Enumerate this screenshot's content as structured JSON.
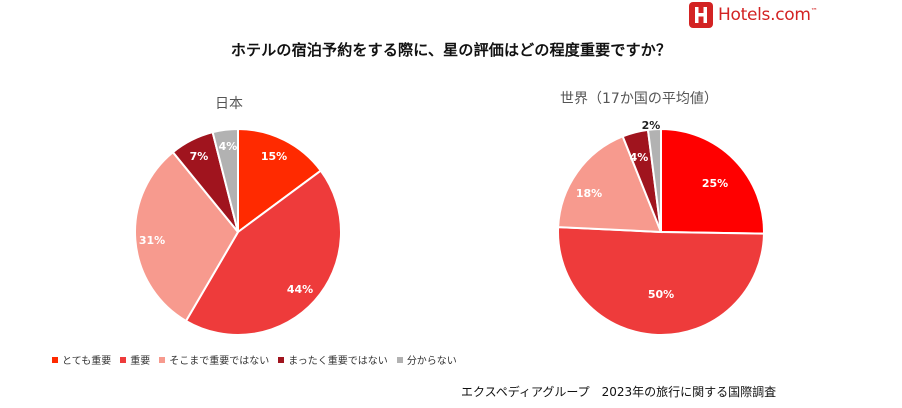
{
  "brand": {
    "name": "Hotels.com",
    "tm": "™",
    "color": "#d32323"
  },
  "title": "ホテルの宿泊予約をする際に、星の評価はどの程度重要ですか？",
  "source": "エクスペディアグループ　2023年の旅行に関する国際調査",
  "legend": [
    {
      "label": "とても重要",
      "color": "#ff2a00"
    },
    {
      "label": "重要",
      "color": "#ee3b3b"
    },
    {
      "label": "そこまで重要ではない",
      "color": "#f79a8e"
    },
    {
      "label": "まったく重要ではない",
      "color": "#a0141e"
    },
    {
      "label": "分からない",
      "color": "#b2b2b2"
    }
  ],
  "chart_data": [
    {
      "type": "pie",
      "title": "日本",
      "categories": [
        "とても重要",
        "重要",
        "そこまで重要ではない",
        "まったく重要ではない",
        "分からない"
      ],
      "values": [
        15,
        44,
        31,
        7,
        4
      ],
      "labels": [
        "15%",
        "44%",
        "31%",
        "7%",
        "4%"
      ],
      "colors": [
        "#ff2a00",
        "#ee3b3b",
        "#f79a8e",
        "#a0141e",
        "#b2b2b2"
      ]
    },
    {
      "type": "pie",
      "title": "世界（17か国の平均値）",
      "categories": [
        "とても重要",
        "重要",
        "そこまで重要ではない",
        "まったく重要ではない",
        "分からない"
      ],
      "values": [
        25,
        50,
        18,
        4,
        2
      ],
      "labels": [
        "25%",
        "50%",
        "18%",
        "4%",
        "2%"
      ],
      "colors": [
        "#ff0000",
        "#ee3b3b",
        "#f79a8e",
        "#a0141e",
        "#b2b2b2"
      ]
    }
  ]
}
